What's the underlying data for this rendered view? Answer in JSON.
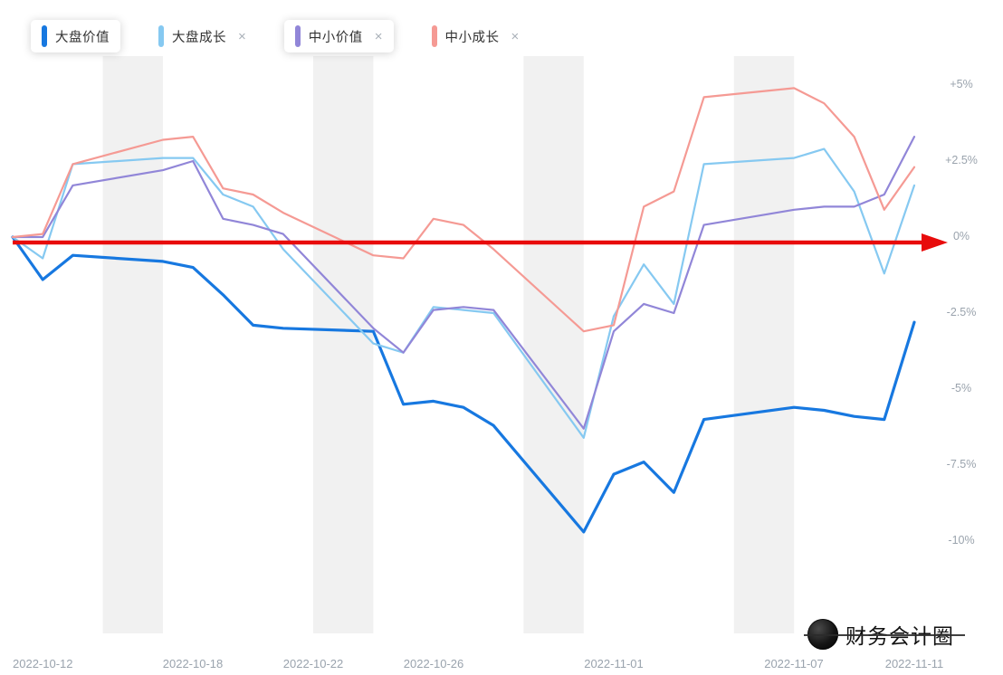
{
  "legend": {
    "close_glyph": "×",
    "items": [
      {
        "label": "大盘价值",
        "color": "#1778e0",
        "closable": false,
        "selected": true
      },
      {
        "label": "大盘成长",
        "color": "#86c9f1",
        "closable": true,
        "selected": false
      },
      {
        "label": "中小价值",
        "color": "#9186d8",
        "closable": true,
        "selected": true
      },
      {
        "label": "中小成长",
        "color": "#f59a94",
        "closable": true,
        "selected": false
      }
    ]
  },
  "watermark": {
    "text": "财务会计圈"
  },
  "chart_data": {
    "type": "line",
    "title": "",
    "xlabel": "",
    "ylabel": "",
    "unit": "percent_return",
    "grid": false,
    "legend_position": "top-left",
    "ylim": [
      -10,
      5
    ],
    "x_dates": [
      "2022-10-12",
      "2022-10-13",
      "2022-10-14",
      "2022-10-17",
      "2022-10-18",
      "2022-10-19",
      "2022-10-20",
      "2022-10-21",
      "2022-10-24",
      "2022-10-25",
      "2022-10-26",
      "2022-10-27",
      "2022-10-28",
      "2022-10-31",
      "2022-11-01",
      "2022-11-02",
      "2022-11-03",
      "2022-11-04",
      "2022-11-07",
      "2022-11-08",
      "2022-11-09",
      "2022-11-10",
      "2022-11-11"
    ],
    "series": [
      {
        "name": "大盘价值",
        "color": "#1778e0",
        "line_width": 3.2,
        "values": [
          0,
          -1.4,
          -0.6,
          -0.8,
          -1.0,
          -1.9,
          -2.9,
          -3.0,
          -3.1,
          -5.5,
          -5.4,
          -5.6,
          -6.2,
          -9.7,
          -7.8,
          -7.4,
          -8.4,
          -6.0,
          -5.6,
          -5.7,
          -5.9,
          -6.0,
          -2.8
        ]
      },
      {
        "name": "大盘成长",
        "color": "#86c9f1",
        "line_width": 2.2,
        "values": [
          0,
          -0.7,
          2.4,
          2.6,
          2.6,
          1.4,
          1.0,
          -0.4,
          -3.5,
          -3.8,
          -2.3,
          -2.4,
          -2.5,
          -6.6,
          -2.6,
          -0.9,
          -2.2,
          2.4,
          2.6,
          2.9,
          1.5,
          -1.2,
          1.7
        ]
      },
      {
        "name": "中小价值",
        "color": "#9186d8",
        "line_width": 2.2,
        "values": [
          0,
          0.0,
          1.7,
          2.2,
          2.5,
          0.6,
          0.4,
          0.1,
          -3.0,
          -3.8,
          -2.4,
          -2.3,
          -2.4,
          -6.3,
          -3.1,
          -2.2,
          -2.5,
          0.4,
          0.9,
          1.0,
          1.0,
          1.4,
          3.3
        ]
      },
      {
        "name": "中小成长",
        "color": "#f59a94",
        "line_width": 2.2,
        "values": [
          0,
          0.1,
          2.4,
          3.2,
          3.3,
          1.6,
          1.4,
          0.8,
          -0.6,
          -0.7,
          0.6,
          0.4,
          -0.4,
          -3.1,
          -2.9,
          1.0,
          1.5,
          4.6,
          4.9,
          4.4,
          3.3,
          0.9,
          2.3
        ]
      }
    ],
    "y_ticks": [
      {
        "label": "+5%",
        "value": 5
      },
      {
        "label": "+2.5%",
        "value": 2.5
      },
      {
        "label": "0%",
        "value": 0
      },
      {
        "label": "-2.5%",
        "value": -2.5
      },
      {
        "label": "-5%",
        "value": -5
      },
      {
        "label": "-7.5%",
        "value": -7.5
      },
      {
        "label": "-10%",
        "value": -10
      }
    ],
    "x_axis_labels": [
      "2022-10-12",
      "2022-10-18",
      "2022-10-22",
      "2022-10-26",
      "2022-11-01",
      "2022-11-07",
      "2022-11-11"
    ],
    "weekend_bands": [
      "2022-10-15/2022-10-17",
      "2022-10-22/2022-10-24",
      "2022-10-29/2022-10-31",
      "2022-11-05/2022-11-07"
    ],
    "weekend_band_color": "#e8e8e8",
    "zero_line_annotation": {
      "type": "arrow",
      "value": 0,
      "color": "#e80b0b"
    }
  }
}
